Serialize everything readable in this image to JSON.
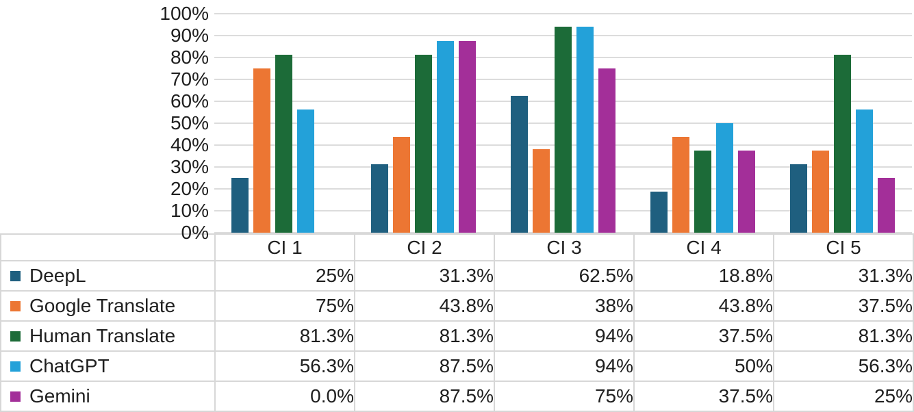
{
  "chart_data": {
    "type": "bar",
    "title": "",
    "xlabel": "",
    "ylabel": "",
    "categories": [
      "CI 1",
      "CI 2",
      "CI 3",
      "CI 4",
      "CI 5"
    ],
    "series": [
      {
        "name": "DeepL",
        "color": "#1F5F7F",
        "values": [
          25,
          31.3,
          62.5,
          18.8,
          31.3
        ],
        "labels": [
          "25%",
          "31.3%",
          "62.5%",
          "18.8%",
          "31.3%"
        ]
      },
      {
        "name": "Google Translate",
        "color": "#EC7633",
        "values": [
          75,
          43.8,
          38,
          43.8,
          37.5
        ],
        "labels": [
          "75%",
          "43.8%",
          "38%",
          "43.8%",
          "37.5%"
        ]
      },
      {
        "name": "Human Translate",
        "color": "#1C6B38",
        "values": [
          81.3,
          81.3,
          94,
          37.5,
          81.3
        ],
        "labels": [
          "81.3%",
          "81.3%",
          "94%",
          "37.5%",
          "81.3%"
        ]
      },
      {
        "name": "ChatGPT",
        "color": "#23A1D9",
        "values": [
          56.3,
          87.5,
          94,
          50,
          56.3
        ],
        "labels": [
          "56.3%",
          "87.5%",
          "94%",
          "50%",
          "56.3%"
        ]
      },
      {
        "name": "Gemini",
        "color": "#A32F99",
        "values": [
          0,
          87.5,
          75,
          37.5,
          25
        ],
        "labels": [
          "0.0%",
          "87.5%",
          "75%",
          "37.5%",
          "25%"
        ]
      }
    ],
    "y_axis": {
      "min": 0,
      "max": 100,
      "ticks": [
        "100%",
        "90%",
        "80%",
        "70%",
        "60%",
        "50%",
        "40%",
        "30%",
        "20%",
        "10%",
        "0%"
      ]
    },
    "grid": "horizontal",
    "legend_position": "table-left-column",
    "colors": {
      "gridline": "#DCDCDC",
      "table_border": "#D7D7D7",
      "text": "#1F1F1F",
      "background": "#FFFFFF"
    }
  }
}
